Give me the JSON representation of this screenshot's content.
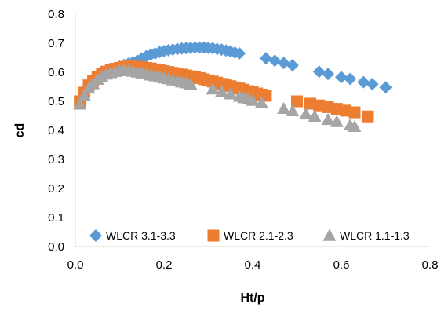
{
  "chart_data": {
    "type": "scatter",
    "title": "",
    "xlabel": "Ht/p",
    "ylabel": "cd",
    "xlim": [
      0,
      0.8
    ],
    "ylim": [
      0,
      0.8
    ],
    "x_ticks": [
      "0.0",
      "0.2",
      "0.4",
      "0.6",
      "0.8"
    ],
    "y_ticks": [
      "0.0",
      "0.1",
      "0.2",
      "0.3",
      "0.4",
      "0.5",
      "0.6",
      "0.7",
      "0.8"
    ],
    "grid": false,
    "legend_position": "bottom-inside",
    "series": [
      {
        "name": "WLCR 3.1-3.3",
        "color": "#5B9BD5",
        "marker": "diamond",
        "points": [
          [
            0.02,
            0.52
          ],
          [
            0.03,
            0.55
          ],
          [
            0.04,
            0.57
          ],
          [
            0.05,
            0.585
          ],
          [
            0.06,
            0.595
          ],
          [
            0.07,
            0.605
          ],
          [
            0.08,
            0.61
          ],
          [
            0.09,
            0.615
          ],
          [
            0.1,
            0.62
          ],
          [
            0.11,
            0.625
          ],
          [
            0.12,
            0.63
          ],
          [
            0.13,
            0.635
          ],
          [
            0.14,
            0.64
          ],
          [
            0.15,
            0.648
          ],
          [
            0.16,
            0.655
          ],
          [
            0.17,
            0.66
          ],
          [
            0.18,
            0.665
          ],
          [
            0.19,
            0.67
          ],
          [
            0.2,
            0.673
          ],
          [
            0.21,
            0.676
          ],
          [
            0.22,
            0.678
          ],
          [
            0.23,
            0.68
          ],
          [
            0.24,
            0.682
          ],
          [
            0.25,
            0.683
          ],
          [
            0.26,
            0.684
          ],
          [
            0.27,
            0.685
          ],
          [
            0.28,
            0.685
          ],
          [
            0.29,
            0.685
          ],
          [
            0.3,
            0.684
          ],
          [
            0.31,
            0.683
          ],
          [
            0.32,
            0.68
          ],
          [
            0.33,
            0.678
          ],
          [
            0.34,
            0.675
          ],
          [
            0.35,
            0.672
          ],
          [
            0.36,
            0.668
          ],
          [
            0.37,
            0.665
          ],
          [
            0.43,
            0.648
          ],
          [
            0.45,
            0.64
          ],
          [
            0.47,
            0.632
          ],
          [
            0.49,
            0.624
          ],
          [
            0.55,
            0.602
          ],
          [
            0.57,
            0.594
          ],
          [
            0.6,
            0.583
          ],
          [
            0.62,
            0.577
          ],
          [
            0.65,
            0.566
          ],
          [
            0.67,
            0.559
          ],
          [
            0.7,
            0.548
          ]
        ]
      },
      {
        "name": "WLCR 2.1-2.3",
        "color": "#ED7D31",
        "marker": "square",
        "points": [
          [
            0.01,
            0.5
          ],
          [
            0.02,
            0.53
          ],
          [
            0.03,
            0.555
          ],
          [
            0.04,
            0.57
          ],
          [
            0.05,
            0.585
          ],
          [
            0.06,
            0.595
          ],
          [
            0.07,
            0.602
          ],
          [
            0.08,
            0.608
          ],
          [
            0.09,
            0.612
          ],
          [
            0.1,
            0.615
          ],
          [
            0.11,
            0.618
          ],
          [
            0.12,
            0.62
          ],
          [
            0.13,
            0.62
          ],
          [
            0.14,
            0.618
          ],
          [
            0.15,
            0.617
          ],
          [
            0.16,
            0.615
          ],
          [
            0.17,
            0.613
          ],
          [
            0.18,
            0.61
          ],
          [
            0.19,
            0.607
          ],
          [
            0.2,
            0.604
          ],
          [
            0.21,
            0.601
          ],
          [
            0.22,
            0.598
          ],
          [
            0.23,
            0.595
          ],
          [
            0.24,
            0.592
          ],
          [
            0.25,
            0.589
          ],
          [
            0.26,
            0.586
          ],
          [
            0.27,
            0.583
          ],
          [
            0.28,
            0.58
          ],
          [
            0.29,
            0.576
          ],
          [
            0.3,
            0.572
          ],
          [
            0.31,
            0.568
          ],
          [
            0.32,
            0.564
          ],
          [
            0.33,
            0.56
          ],
          [
            0.34,
            0.556
          ],
          [
            0.35,
            0.552
          ],
          [
            0.36,
            0.548
          ],
          [
            0.37,
            0.544
          ],
          [
            0.38,
            0.54
          ],
          [
            0.39,
            0.535
          ],
          [
            0.4,
            0.531
          ],
          [
            0.41,
            0.527
          ],
          [
            0.42,
            0.523
          ],
          [
            0.43,
            0.519
          ],
          [
            0.5,
            0.5
          ],
          [
            0.53,
            0.492
          ],
          [
            0.55,
            0.486
          ],
          [
            0.57,
            0.48
          ],
          [
            0.59,
            0.474
          ],
          [
            0.61,
            0.468
          ],
          [
            0.63,
            0.462
          ],
          [
            0.66,
            0.448
          ]
        ]
      },
      {
        "name": "WLCR 1.1-1.3",
        "color": "#A5A5A5",
        "marker": "triangle",
        "points": [
          [
            0.01,
            0.49
          ],
          [
            0.02,
            0.52
          ],
          [
            0.03,
            0.545
          ],
          [
            0.04,
            0.56
          ],
          [
            0.05,
            0.575
          ],
          [
            0.06,
            0.585
          ],
          [
            0.07,
            0.593
          ],
          [
            0.08,
            0.598
          ],
          [
            0.09,
            0.602
          ],
          [
            0.1,
            0.605
          ],
          [
            0.11,
            0.606
          ],
          [
            0.12,
            0.605
          ],
          [
            0.13,
            0.603
          ],
          [
            0.14,
            0.6
          ],
          [
            0.15,
            0.597
          ],
          [
            0.16,
            0.594
          ],
          [
            0.17,
            0.59
          ],
          [
            0.18,
            0.587
          ],
          [
            0.19,
            0.583
          ],
          [
            0.2,
            0.58
          ],
          [
            0.21,
            0.577
          ],
          [
            0.22,
            0.573
          ],
          [
            0.23,
            0.57
          ],
          [
            0.24,
            0.566
          ],
          [
            0.25,
            0.563
          ],
          [
            0.26,
            0.559
          ],
          [
            0.31,
            0.542
          ],
          [
            0.33,
            0.533
          ],
          [
            0.35,
            0.525
          ],
          [
            0.37,
            0.517
          ],
          [
            0.38,
            0.512
          ],
          [
            0.39,
            0.508
          ],
          [
            0.4,
            0.503
          ],
          [
            0.42,
            0.495
          ],
          [
            0.47,
            0.475
          ],
          [
            0.49,
            0.467
          ],
          [
            0.52,
            0.456
          ],
          [
            0.54,
            0.448
          ],
          [
            0.57,
            0.437
          ],
          [
            0.59,
            0.43
          ],
          [
            0.62,
            0.418
          ],
          [
            0.63,
            0.413
          ]
        ]
      }
    ]
  }
}
